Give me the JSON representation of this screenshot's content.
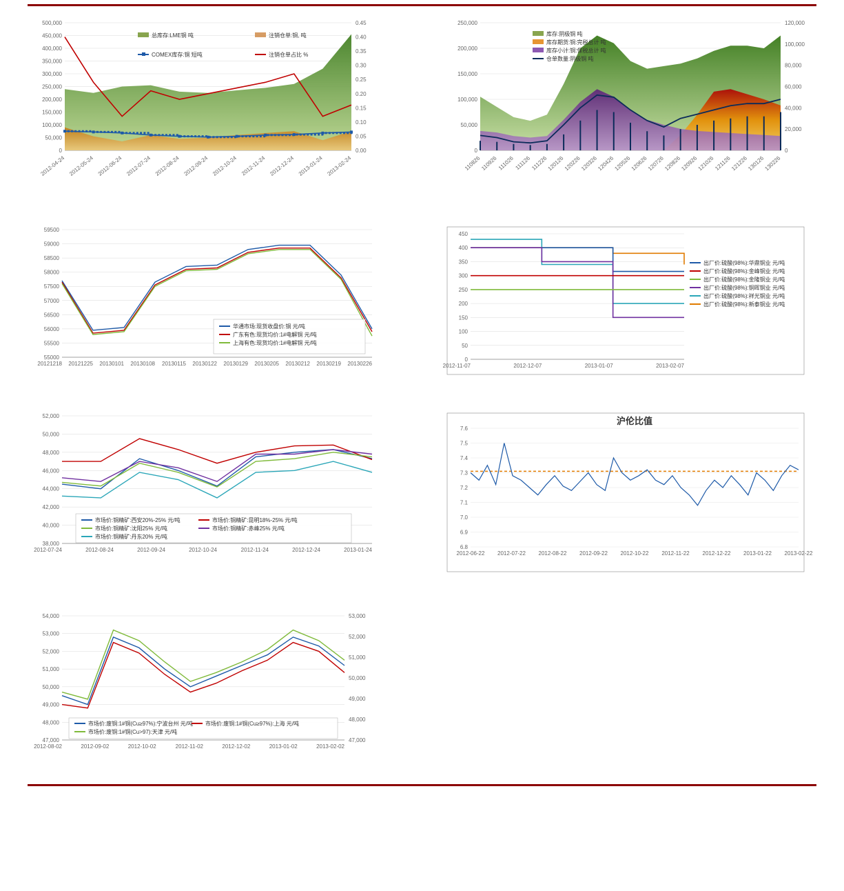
{
  "page_bg": "#ffffff",
  "rule_color": "#8b0000",
  "chart1": {
    "type": "area+line",
    "bg": "#ffffff",
    "grid_color": "#d9d9d9",
    "y_left": {
      "min": 0,
      "max": 500000,
      "step": 50000
    },
    "y_right": {
      "min": 0,
      "max": 0.45,
      "step": 0.05
    },
    "x_labels": [
      "2012-04-24",
      "2012-05-24",
      "2012-06-24",
      "2012-07-24",
      "2012-08-24",
      "2012-09-24",
      "2012-10-24",
      "2012-11-24",
      "2012-12-24",
      "2013-01-24",
      "2013-02-24"
    ],
    "legend": [
      {
        "label": "总库存:LME铜  吨",
        "color": "#6b8e23",
        "type": "area"
      },
      {
        "label": "注销仓单:铜, 吨",
        "color": "#cd853f",
        "type": "area"
      },
      {
        "label": "COMEX库存:铜  短吨",
        "color": "#1e5aa8",
        "type": "line_marker"
      },
      {
        "label": "注销仓单占比  %",
        "color": "#c00000",
        "type": "line"
      }
    ],
    "area_green": [
      240000,
      225000,
      250000,
      255000,
      230000,
      225000,
      235000,
      245000,
      260000,
      320000,
      455000
    ],
    "area_orange": [
      90000,
      55000,
      35000,
      60000,
      45000,
      50000,
      60000,
      68000,
      75000,
      40000,
      75000
    ],
    "line_blue": [
      75000,
      72000,
      68000,
      60000,
      55000,
      52000,
      55000,
      60000,
      62000,
      68000,
      72000
    ],
    "line_red": [
      0.4,
      0.24,
      0.12,
      0.21,
      0.18,
      0.2,
      0.22,
      0.24,
      0.27,
      0.12,
      0.16
    ]
  },
  "chart2": {
    "type": "area+line",
    "bg": "#ffffff",
    "grid_color": "#d9d9d9",
    "y_left": {
      "min": 0,
      "max": 250000,
      "step": 50000
    },
    "y_right": {
      "min": 0,
      "max": 120000,
      "step": 20000
    },
    "x_labels": [
      "110826",
      "110926",
      "111026",
      "111126",
      "111226",
      "120126",
      "120226",
      "120326",
      "120426",
      "120526",
      "120626",
      "120726",
      "120826",
      "120926",
      "121026",
      "121126",
      "121226",
      "130126",
      "130226"
    ],
    "legend": [
      {
        "label": "库存:阴极铜  吨",
        "color": "#6b8e23",
        "type": "area"
      },
      {
        "label": "库存期货:铜:完税总计  吨",
        "color": "#e07b00",
        "type": "area"
      },
      {
        "label": "库存小计:铜:保税总计  吨",
        "color": "#7030a0",
        "type": "area"
      },
      {
        "label": "仓单数量:阴极铜  吨",
        "color": "#0b2b5a",
        "type": "line"
      }
    ],
    "area_green": [
      105000,
      85000,
      65000,
      58000,
      70000,
      130000,
      200000,
      225000,
      210000,
      175000,
      160000,
      165000,
      170000,
      180000,
      195000,
      205000,
      205000,
      200000,
      225000
    ],
    "area_red": [
      0,
      0,
      0,
      0,
      0,
      0,
      0,
      0,
      0,
      0,
      0,
      0,
      30000,
      70000,
      115000,
      120000,
      110000,
      100000,
      88000
    ],
    "area_purple": [
      38000,
      35000,
      28000,
      25000,
      28000,
      60000,
      95000,
      120000,
      105000,
      78000,
      60000,
      50000,
      42000,
      38000,
      36000,
      34000,
      32000,
      30000,
      28000
    ],
    "line_navy": [
      14000,
      12000,
      8000,
      7000,
      9000,
      24000,
      40000,
      52000,
      50000,
      38000,
      28000,
      22000,
      30000,
      34000,
      38000,
      42000,
      44000,
      44000,
      48000
    ],
    "bars": [
      9000,
      8000,
      6000,
      5000,
      6000,
      15000,
      28000,
      38000,
      36000,
      26000,
      18000,
      14000,
      20000,
      24000,
      28000,
      30000,
      32000,
      32000,
      36000
    ]
  },
  "chart3": {
    "type": "line",
    "bg": "#ffffff",
    "grid_color": "#d9d9d9",
    "y": {
      "min": 55000,
      "max": 59500,
      "step": 500
    },
    "x_labels": [
      "20121218",
      "20121225",
      "20130101",
      "20130108",
      "20130115",
      "20130122",
      "20130129",
      "20130205",
      "20130212",
      "20130219",
      "20130226"
    ],
    "legend": [
      {
        "label": "华通市场:现货收盘价:铜  元/吨",
        "color": "#1e5aa8"
      },
      {
        "label": "广东有色:现货均价:1#电解铜  元/吨",
        "color": "#c00000"
      },
      {
        "label": "上海有色:现货均价:1#电解铜  元/吨",
        "color": "#7fba3a"
      }
    ],
    "line_blue": [
      57700,
      55950,
      56050,
      57650,
      58200,
      58250,
      58800,
      58950,
      58950,
      57900,
      56000
    ],
    "line_red": [
      57650,
      55850,
      55950,
      57550,
      58100,
      58150,
      58700,
      58850,
      58850,
      57800,
      55900
    ],
    "line_green": [
      57600,
      55800,
      55900,
      57500,
      58050,
      58100,
      58650,
      58800,
      58800,
      57750,
      55750
    ]
  },
  "chart4": {
    "type": "step",
    "bg": "#ffffff",
    "grid_color": "#d9d9d9",
    "y": {
      "min": 0,
      "max": 450,
      "step": 50
    },
    "x_labels": [
      "2012-11-07",
      "2012-12-07",
      "2013-01-07",
      "2013-02-07"
    ],
    "box_border": "#888",
    "legend": [
      {
        "label": "出厂价:硫酸(98%):华鼎铜业  元/吨",
        "color": "#1e5aa8"
      },
      {
        "label": "出厂价:硫酸(98%):金峰铜业  元/吨",
        "color": "#c00000"
      },
      {
        "label": "出厂价:硫酸(98%):金隆铜业  元/吨",
        "color": "#7fba3a"
      },
      {
        "label": "出厂价:硫酸(98%):铜晖铜业  元/吨",
        "color": "#7030a0"
      },
      {
        "label": "出厂价:硫酸(98%):祥光铜业  元/吨",
        "color": "#2aa6b8"
      },
      {
        "label": "出厂价:硫酸(98%):新泰铜业  元/吨",
        "color": "#e07b00"
      }
    ],
    "s_blue": [
      400,
      400,
      315,
      315
    ],
    "s_red": [
      300,
      300,
      300,
      300
    ],
    "s_green": [
      250,
      250,
      250,
      250
    ],
    "s_purple": [
      400,
      350,
      150,
      150
    ],
    "s_teal": [
      430,
      340,
      200,
      200
    ],
    "s_orange": [
      400,
      400,
      380,
      340
    ]
  },
  "chart5": {
    "type": "line",
    "bg": "#ffffff",
    "grid_color": "#d9d9d9",
    "y": {
      "min": 38000,
      "max": 52000,
      "step": 2000
    },
    "x_labels": [
      "2012-07-24",
      "2012-08-24",
      "2012-09-24",
      "2012-10-24",
      "2012-11-24",
      "2012-12-24",
      "2013-01-24"
    ],
    "legend": [
      {
        "label": "市场价:铜精矿:西安20%-25%  元/吨",
        "color": "#1e5aa8"
      },
      {
        "label": "市场价:铜精矿:昆明18%-25%  元/吨",
        "color": "#c00000"
      },
      {
        "label": "市场价:铜精矿:沈阳25%  元/吨",
        "color": "#7fba3a"
      },
      {
        "label": "市场价:铜精矿:赤峰25%  元/吨",
        "color": "#7030a0"
      },
      {
        "label": "市场价:铜精矿:丹东20%  元/吨",
        "color": "#2aa6b8"
      }
    ],
    "line_blue": [
      44500,
      44000,
      47300,
      46000,
      44300,
      47500,
      48000,
      48300,
      47300
    ],
    "line_red": [
      47000,
      47000,
      49500,
      48300,
      46800,
      48000,
      48700,
      48800,
      47200
    ],
    "line_green": [
      44700,
      44300,
      46800,
      45800,
      44200,
      47000,
      47300,
      48000,
      47500
    ],
    "line_purple": [
      45200,
      44800,
      47000,
      46300,
      44800,
      47800,
      47800,
      48300,
      47800
    ],
    "line_teal": [
      43200,
      43000,
      45800,
      45000,
      43000,
      45800,
      46000,
      47000,
      45800
    ]
  },
  "chart6": {
    "type": "line",
    "title": "沪伦比值",
    "bg": "#ffffff",
    "grid_color": "#e6e6e6",
    "y": {
      "min": 6.8,
      "max": 7.6,
      "step": 0.1
    },
    "x_labels": [
      "2012-06-22",
      "2012-07-22",
      "2012-08-22",
      "2012-09-22",
      "2012-10-22",
      "2012-11-22",
      "2012-12-22",
      "2013-01-22",
      "2013-02-22"
    ],
    "ref_line": {
      "value": 7.31,
      "color": "#e07b00",
      "dash": true
    },
    "series": {
      "color": "#1e5aa8",
      "values": [
        7.3,
        7.25,
        7.35,
        7.22,
        7.5,
        7.28,
        7.25,
        7.2,
        7.15,
        7.22,
        7.28,
        7.21,
        7.18,
        7.24,
        7.3,
        7.22,
        7.18,
        7.4,
        7.3,
        7.25,
        7.28,
        7.32,
        7.25,
        7.22,
        7.28,
        7.2,
        7.15,
        7.08,
        7.18,
        7.25,
        7.2,
        7.28,
        7.22,
        7.15,
        7.3,
        7.25,
        7.18,
        7.28,
        7.35,
        7.32
      ]
    }
  },
  "chart7": {
    "type": "line",
    "bg": "#ffffff",
    "grid_color": "#d9d9d9",
    "y_left": {
      "min": 47000,
      "max": 54000,
      "step": 1000
    },
    "y_right": {
      "min": 47000,
      "max": 53000,
      "step": 1000
    },
    "x_labels": [
      "2012-08-02",
      "2012-09-02",
      "2012-10-02",
      "2012-11-02",
      "2012-12-02",
      "2013-01-02",
      "2013-02-02"
    ],
    "legend": [
      {
        "label": "市场价:废铜:1#铜(Cu≥97%):宁波台州  元/吨",
        "color": "#1e5aa8"
      },
      {
        "label": "市场价:废铜:1#铜(Cu≥97%):上海  元/吨",
        "color": "#c00000"
      },
      {
        "label": "市场价:废铜:1#铜(Cu>97):天津  元/吨",
        "color": "#7fba3a"
      }
    ],
    "line_blue": [
      49500,
      49000,
      52800,
      52200,
      51000,
      50000,
      50600,
      51200,
      51800,
      52800,
      52300,
      51200
    ],
    "line_red": [
      49000,
      48800,
      52500,
      51900,
      50700,
      49700,
      50200,
      50900,
      51500,
      52500,
      52000,
      50800
    ],
    "line_green": [
      49700,
      49300,
      53200,
      52600,
      51400,
      50300,
      50800,
      51400,
      52100,
      53200,
      52600,
      51500
    ]
  }
}
